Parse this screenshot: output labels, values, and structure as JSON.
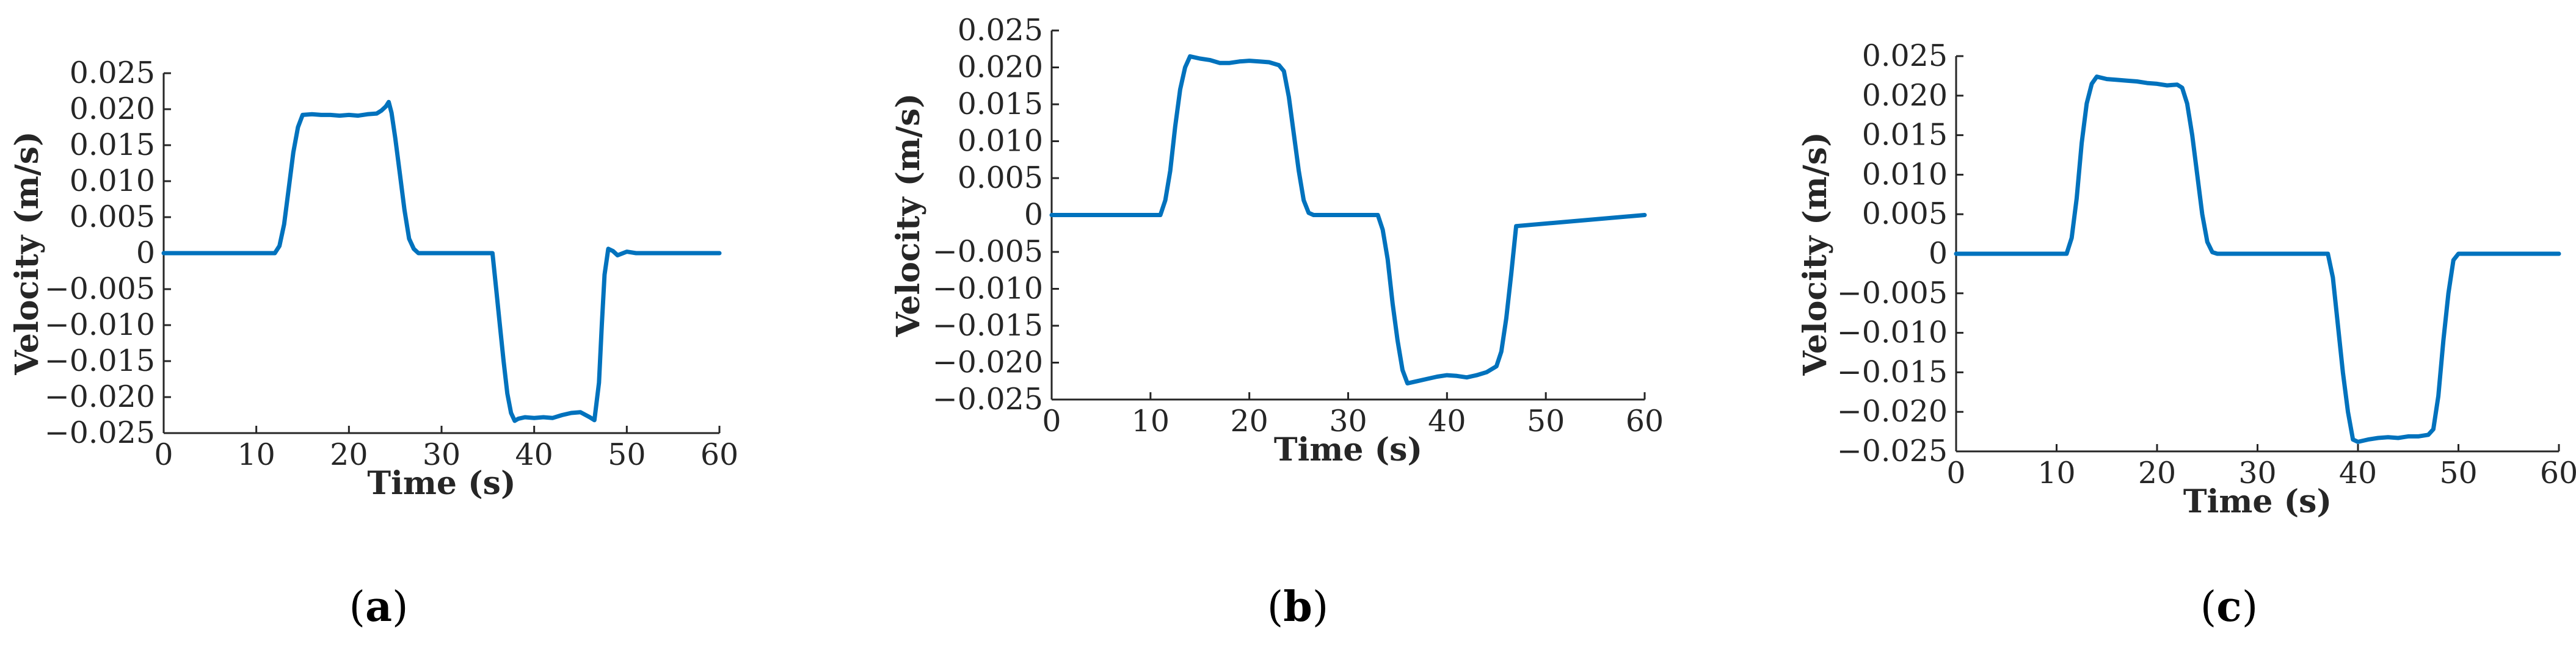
{
  "line_color": "#0072BD",
  "chart_data": [
    {
      "type": "line",
      "caption": {
        "open": "(",
        "letter": "a",
        "close": ")"
      },
      "xlabel": "Time (s)",
      "ylabel": "Velocity (m/s)",
      "xlim": [
        0,
        60
      ],
      "ylim": [
        -0.025,
        0.025
      ],
      "xticks": [
        {
          "value": 0,
          "label": "0"
        },
        {
          "value": 10,
          "label": "10"
        },
        {
          "value": 20,
          "label": "20"
        },
        {
          "value": 30,
          "label": "30"
        },
        {
          "value": 40,
          "label": "40"
        },
        {
          "value": 50,
          "label": "50"
        },
        {
          "value": 60,
          "label": "60"
        }
      ],
      "yticks": [
        {
          "value": 0.025,
          "label": "0.025"
        },
        {
          "value": 0.02,
          "label": "0.020"
        },
        {
          "value": 0.015,
          "label": "0.015"
        },
        {
          "value": 0.01,
          "label": "0.010"
        },
        {
          "value": 0.005,
          "label": "0.005"
        },
        {
          "value": 0,
          "label": "0"
        },
        {
          "value": -0.005,
          "label": "−0.005"
        },
        {
          "value": -0.01,
          "label": "−0.010"
        },
        {
          "value": -0.015,
          "label": "−0.015"
        },
        {
          "value": -0.02,
          "label": "−0.020"
        },
        {
          "value": -0.025,
          "label": "−0.025"
        }
      ],
      "series": [
        {
          "x": [
            0,
            12.0,
            12.5,
            13.0,
            13.5,
            14.0,
            14.5,
            15.0,
            16,
            17,
            18,
            19,
            20,
            21,
            22,
            23,
            23.5,
            24.0,
            24.3,
            24.6,
            25.0,
            25.5,
            26.0,
            26.5,
            27.0,
            27.5,
            28.0,
            28.5,
            30,
            35.5,
            35.9,
            36.3,
            36.7,
            37.1,
            37.5,
            37.9,
            38.3,
            39.0,
            40,
            41,
            42,
            43,
            44,
            45,
            46,
            46.5,
            47.0,
            47.3,
            47.6,
            48.0,
            48.5,
            49.0,
            50,
            51,
            60
          ],
          "y": [
            0,
            0,
            0.001,
            0.004,
            0.009,
            0.014,
            0.0175,
            0.0192,
            0.0193,
            0.0192,
            0.0192,
            0.0191,
            0.0192,
            0.0191,
            0.0193,
            0.0194,
            0.0198,
            0.0204,
            0.021,
            0.0195,
            0.016,
            0.011,
            0.006,
            0.002,
            0.0006,
            0,
            0,
            0,
            0,
            0,
            -0.005,
            -0.01,
            -0.015,
            -0.0195,
            -0.0222,
            -0.0233,
            -0.023,
            -0.0228,
            -0.0229,
            -0.0228,
            -0.0229,
            -0.0225,
            -0.0222,
            -0.0221,
            -0.0228,
            -0.0232,
            -0.018,
            -0.01,
            -0.003,
            0.0006,
            0.0003,
            -0.0003,
            0.0002,
            0,
            0
          ]
        }
      ]
    },
    {
      "type": "line",
      "caption": {
        "open": "(",
        "letter": "b",
        "close": ")"
      },
      "xlabel": "Time (s)",
      "ylabel": "Velocity (m/s)",
      "xlim": [
        0,
        60
      ],
      "ylim": [
        -0.025,
        0.025
      ],
      "xticks": [
        {
          "value": 0,
          "label": "0"
        },
        {
          "value": 10,
          "label": "10"
        },
        {
          "value": 20,
          "label": "20"
        },
        {
          "value": 30,
          "label": "30"
        },
        {
          "value": 40,
          "label": "40"
        },
        {
          "value": 50,
          "label": "50"
        },
        {
          "value": 60,
          "label": "60"
        }
      ],
      "yticks": [
        {
          "value": 0.025,
          "label": "0.025"
        },
        {
          "value": 0.02,
          "label": "0.020"
        },
        {
          "value": 0.015,
          "label": "0.015"
        },
        {
          "value": 0.01,
          "label": "0.010"
        },
        {
          "value": 0.005,
          "label": "0.005"
        },
        {
          "value": 0,
          "label": "0"
        },
        {
          "value": -0.005,
          "label": "−0.005"
        },
        {
          "value": -0.01,
          "label": "−0.010"
        },
        {
          "value": -0.015,
          "label": "−0.015"
        },
        {
          "value": -0.02,
          "label": "−0.020"
        },
        {
          "value": -0.025,
          "label": "−0.025"
        }
      ],
      "series": [
        {
          "x": [
            0,
            11.0,
            11.5,
            12.0,
            12.5,
            13.0,
            13.5,
            14.0,
            15,
            16,
            17,
            18,
            19,
            20,
            21,
            22,
            23,
            23.5,
            24.0,
            24.5,
            25.0,
            25.5,
            26.0,
            26.5,
            27,
            33.0,
            33.5,
            34.0,
            34.5,
            35.0,
            35.5,
            36.0,
            37,
            38,
            39,
            40,
            41,
            42,
            43,
            44,
            45,
            45.5,
            46.0,
            46.5,
            47.0,
            60
          ],
          "y": [
            0,
            0,
            0.002,
            0.006,
            0.012,
            0.017,
            0.02,
            0.0215,
            0.0212,
            0.021,
            0.0206,
            0.0206,
            0.0208,
            0.0209,
            0.0208,
            0.0207,
            0.0203,
            0.0195,
            0.016,
            0.011,
            0.006,
            0.002,
            0.0003,
            0,
            0,
            0,
            -0.002,
            -0.006,
            -0.012,
            -0.017,
            -0.021,
            -0.0228,
            -0.0225,
            -0.0222,
            -0.0219,
            -0.0217,
            -0.0218,
            -0.022,
            -0.0217,
            -0.0213,
            -0.0205,
            -0.0185,
            -0.014,
            -0.008,
            -0.0015,
            0
          ]
        }
      ]
    },
    {
      "type": "line",
      "caption": {
        "open": "(",
        "letter": "c",
        "close": ")"
      },
      "xlabel": "Time (s)",
      "ylabel": "Velocity (m/s)",
      "xlim": [
        0,
        60
      ],
      "ylim": [
        -0.025,
        0.025
      ],
      "xticks": [
        {
          "value": 0,
          "label": "0"
        },
        {
          "value": 10,
          "label": "10"
        },
        {
          "value": 20,
          "label": "20"
        },
        {
          "value": 30,
          "label": "30"
        },
        {
          "value": 40,
          "label": "40"
        },
        {
          "value": 50,
          "label": "50"
        },
        {
          "value": 60,
          "label": "60"
        }
      ],
      "yticks": [
        {
          "value": 0.025,
          "label": "0.025"
        },
        {
          "value": 0.02,
          "label": "0.020"
        },
        {
          "value": 0.015,
          "label": "0.015"
        },
        {
          "value": 0.01,
          "label": "0.010"
        },
        {
          "value": 0.005,
          "label": "0.005"
        },
        {
          "value": 0,
          "label": "0"
        },
        {
          "value": -0.005,
          "label": "−0.005"
        },
        {
          "value": -0.01,
          "label": "−0.010"
        },
        {
          "value": -0.015,
          "label": "−0.015"
        },
        {
          "value": -0.02,
          "label": "−0.020"
        },
        {
          "value": -0.025,
          "label": "−0.025"
        }
      ],
      "series": [
        {
          "x": [
            0,
            11.0,
            11.5,
            12.0,
            12.5,
            13.0,
            13.5,
            14.0,
            15,
            16,
            17,
            18,
            19,
            20,
            21,
            22,
            22.5,
            23.0,
            23.5,
            24.0,
            24.5,
            25.0,
            25.5,
            26,
            37.0,
            37.5,
            38.0,
            38.5,
            39.0,
            39.5,
            40.0,
            41,
            42,
            43,
            44,
            45,
            46,
            47,
            47.5,
            48.0,
            48.5,
            49.0,
            49.5,
            50,
            60
          ],
          "y": [
            0,
            0,
            0.002,
            0.007,
            0.014,
            0.019,
            0.0215,
            0.0224,
            0.0221,
            0.022,
            0.0219,
            0.0218,
            0.0216,
            0.0215,
            0.0213,
            0.0214,
            0.021,
            0.019,
            0.015,
            0.01,
            0.005,
            0.0015,
            0.0002,
            0,
            0,
            -0.003,
            -0.009,
            -0.015,
            -0.02,
            -0.0235,
            -0.0238,
            -0.0235,
            -0.0233,
            -0.0232,
            -0.0233,
            -0.0231,
            -0.0231,
            -0.0229,
            -0.0222,
            -0.018,
            -0.011,
            -0.005,
            -0.0008,
            0,
            0
          ]
        }
      ]
    }
  ]
}
